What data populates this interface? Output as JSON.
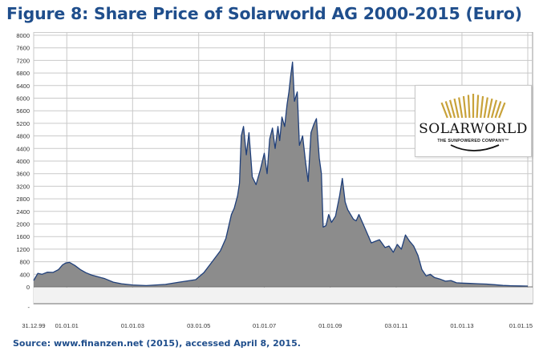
{
  "figure": {
    "title": "Figure 8: Share Price of Solarworld AG 2000-2015 (Euro)",
    "source": "Source: www.finanzen.net (2015), accessed April 8, 2015."
  },
  "logo": {
    "wordmark": "SOLARWORLD",
    "tagline": "THE SUNPOWERED COMPANY™",
    "colors": {
      "gold": "#c8a23a",
      "text": "#111111"
    }
  },
  "chart_data": {
    "type": "area",
    "title": "Figure 8: Share Price of Solarworld AG 2000-2015 (Euro)",
    "xlabel": "",
    "ylabel": "",
    "ylim": [
      0,
      8000
    ],
    "yticks": [
      0,
      400,
      800,
      1200,
      1600,
      2000,
      2400,
      2800,
      3200,
      3600,
      4000,
      4400,
      4800,
      5200,
      5600,
      6000,
      6400,
      6800,
      7200,
      7600,
      8000
    ],
    "xlim": [
      "1999-12-31",
      "2015-01-01"
    ],
    "xticks": [
      {
        "date": "1999-12-31",
        "label": "31.12.99"
      },
      {
        "date": "2001-01-01",
        "label": "01.01.01"
      },
      {
        "date": "2003-01-01",
        "label": "01.01.03"
      },
      {
        "date": "2005-01-03",
        "label": "03.01.05"
      },
      {
        "date": "2007-01-01",
        "label": "01.01.07"
      },
      {
        "date": "2009-01-01",
        "label": "01.01.09"
      },
      {
        "date": "2011-01-03",
        "label": "03.01.11"
      },
      {
        "date": "2013-01-01",
        "label": "01.01.13"
      },
      {
        "date": "2015-01-01",
        "label": "01.01.15"
      }
    ],
    "grid": true,
    "colors": {
      "fill": "#8c8c8c",
      "line": "#1f3f7a",
      "grid": "#c9c9c9",
      "plot_bg": "#ffffff"
    },
    "series": [
      {
        "x": [
          "1999-12-31",
          "2000-01-15",
          "2000-02-15",
          "2000-04-01",
          "2000-06-01",
          "2000-08-01",
          "2000-10-01",
          "2000-11-15",
          "2000-12-20",
          "2001-02-01",
          "2001-04-01",
          "2001-06-01",
          "2001-08-01",
          "2001-10-01",
          "2001-12-01",
          "2002-03-01",
          "2002-06-01",
          "2002-09-01",
          "2003-01-01",
          "2003-06-01",
          "2004-01-01",
          "2004-06-01",
          "2004-12-01",
          "2005-03-01",
          "2005-06-01",
          "2005-09-01",
          "2005-11-01",
          "2006-01-01",
          "2006-02-01",
          "2006-03-10",
          "2006-04-01",
          "2006-04-20",
          "2006-05-15",
          "2006-06-15",
          "2006-07-15",
          "2006-08-20",
          "2006-10-01",
          "2006-11-15",
          "2007-01-01",
          "2007-02-01",
          "2007-03-01",
          "2007-04-01",
          "2007-05-01",
          "2007-06-01",
          "2007-06-20",
          "2007-07-15",
          "2007-08-15",
          "2007-09-10",
          "2007-10-01",
          "2007-10-20",
          "2007-11-10",
          "2007-12-01",
          "2008-01-01",
          "2008-01-25",
          "2008-03-01",
          "2008-04-01",
          "2008-05-01",
          "2008-06-01",
          "2008-07-01",
          "2008-08-01",
          "2008-09-01",
          "2008-09-25",
          "2008-10-15",
          "2008-11-15",
          "2008-12-15",
          "2009-01-15",
          "2009-03-01",
          "2009-04-15",
          "2009-05-15",
          "2009-06-15",
          "2009-07-15",
          "2009-08-15",
          "2009-09-15",
          "2009-10-15",
          "2009-11-15",
          "2010-01-01",
          "2010-02-15",
          "2010-04-01",
          "2010-05-15",
          "2010-07-01",
          "2010-09-01",
          "2010-10-15",
          "2010-12-01",
          "2011-01-15",
          "2011-03-01",
          "2011-04-15",
          "2011-06-01",
          "2011-07-15",
          "2011-09-01",
          "2011-10-15",
          "2011-12-01",
          "2012-01-15",
          "2012-03-01",
          "2012-05-01",
          "2012-07-01",
          "2012-09-01",
          "2012-11-01",
          "2013-01-01",
          "2013-04-01",
          "2013-07-01",
          "2013-10-01",
          "2014-01-01",
          "2014-04-01",
          "2014-07-01",
          "2014-10-01",
          "2015-01-01"
        ],
        "y": [
          200,
          280,
          430,
          400,
          470,
          460,
          550,
          700,
          760,
          780,
          680,
          550,
          450,
          380,
          330,
          260,
          150,
          100,
          60,
          40,
          80,
          150,
          230,
          450,
          800,
          1150,
          1550,
          2300,
          2500,
          2900,
          3300,
          4800,
          5100,
          4200,
          4900,
          3500,
          3250,
          3700,
          4250,
          3600,
          4700,
          5050,
          4400,
          5100,
          4650,
          5400,
          5100,
          5800,
          6200,
          6700,
          7150,
          5900,
          6200,
          4500,
          4800,
          4000,
          3350,
          4900,
          5150,
          5350,
          4100,
          3600,
          1900,
          1950,
          2300,
          2050,
          2250,
          2900,
          3450,
          2700,
          2450,
          2300,
          2150,
          2100,
          2300,
          2000,
          1700,
          1400,
          1450,
          1500,
          1250,
          1300,
          1100,
          1350,
          1200,
          1650,
          1450,
          1300,
          1000,
          550,
          350,
          400,
          300,
          250,
          180,
          200,
          130,
          120,
          110,
          100,
          90,
          70,
          45,
          35,
          30,
          25
        ]
      }
    ]
  }
}
